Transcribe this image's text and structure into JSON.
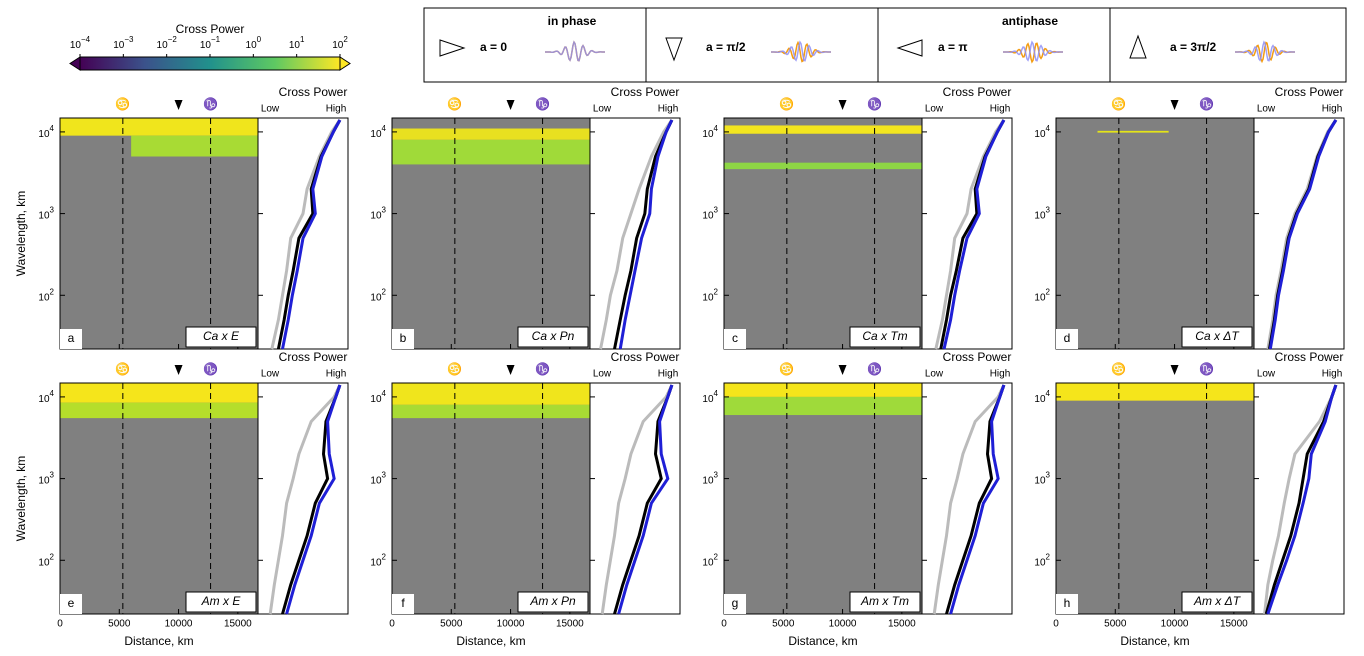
{
  "colorbar": {
    "title": "Cross Power",
    "lim": [
      0.0001,
      100
    ],
    "ticks": [
      {
        "value": 0.0001,
        "label": "10",
        "exponent": "−4"
      },
      {
        "value": 0.001,
        "label": "10",
        "exponent": "−3"
      },
      {
        "value": 0.01,
        "label": "10",
        "exponent": "−2"
      },
      {
        "value": 0.1,
        "label": "10",
        "exponent": "−1"
      },
      {
        "value": 1,
        "label": "10",
        "exponent": "0"
      },
      {
        "value": 10,
        "label": "10",
        "exponent": "1"
      },
      {
        "value": 100,
        "label": "10",
        "exponent": "2"
      }
    ]
  },
  "legend": [
    {
      "label": "a = 0",
      "note": "in phase"
    },
    {
      "label": "a = π/2"
    },
    {
      "label": "a = π",
      "note": "antiphase"
    },
    {
      "label": "a = 3π/2"
    }
  ],
  "axes": {
    "xlabel": "Distance, km",
    "ylabel": "Wavelength, km",
    "xlim": [
      0,
      16700
    ],
    "xticks": [
      0,
      5000,
      10000,
      15000
    ],
    "ylim": [
      22,
      14800
    ],
    "yticks": [
      {
        "value": 100,
        "label": "10",
        "exponent": "2"
      },
      {
        "value": 1000,
        "label": "10",
        "exponent": "3"
      },
      {
        "value": 10000,
        "label": "10",
        "exponent": "4"
      }
    ],
    "side_title": "Cross Power",
    "low": "Low",
    "high": "High",
    "tropics": [
      {
        "label": "♋",
        "distance": 5300
      },
      {
        "label": "♑",
        "distance": 12700
      }
    ],
    "equator": 10000,
    "wavelengths": [
      22,
      50,
      100,
      200,
      500,
      1000,
      2000,
      5000,
      10000,
      14000
    ]
  },
  "panels": [
    {
      "label": "a",
      "title": "Ca x E",
      "bands": [
        {
          "from": 9000,
          "to": 14800,
          "distance": [
            0,
            16700
          ],
          "color": "#f0e51c"
        },
        {
          "from": 5000,
          "to": 9000,
          "distance": [
            6000,
            16700
          ],
          "color": "#a8db34"
        }
      ],
      "curves": [
        {
          "color": "#bbbbbb",
          "values": [
            0.12,
            0.2,
            0.25,
            0.3,
            0.35,
            0.5,
            0.55,
            0.7,
            0.85,
            0.95
          ]
        },
        {
          "color": "#000000",
          "values": [
            0.2,
            0.27,
            0.32,
            0.38,
            0.45,
            0.62,
            0.6,
            0.72,
            0.87,
            0.95
          ]
        },
        {
          "color": "#1f1fd6",
          "values": [
            0.25,
            0.32,
            0.37,
            0.43,
            0.5,
            0.65,
            0.62,
            0.73,
            0.87,
            0.95
          ]
        }
      ]
    },
    {
      "label": "b",
      "title": "Ca x Pn",
      "bands": [
        {
          "from": 8000,
          "to": 11000,
          "distance": [
            0,
            16700
          ],
          "color": "#e8e020"
        },
        {
          "from": 4000,
          "to": 8000,
          "distance": [
            0,
            16700
          ],
          "color": "#a0da39"
        }
      ],
      "curves": [
        {
          "color": "#bbbbbb",
          "values": [
            0.08,
            0.15,
            0.2,
            0.28,
            0.35,
            0.45,
            0.55,
            0.7,
            0.85,
            0.95
          ]
        },
        {
          "color": "#000000",
          "values": [
            0.25,
            0.32,
            0.38,
            0.45,
            0.52,
            0.62,
            0.65,
            0.75,
            0.88,
            0.95
          ]
        },
        {
          "color": "#1f1fd6",
          "values": [
            0.32,
            0.38,
            0.44,
            0.5,
            0.58,
            0.68,
            0.7,
            0.78,
            0.88,
            0.95
          ]
        }
      ]
    },
    {
      "label": "c",
      "title": "Ca x Tm",
      "bands": [
        {
          "from": 9500,
          "to": 12000,
          "distance": [
            0,
            16700
          ],
          "color": "#f3e51e"
        },
        {
          "from": 3500,
          "to": 4200,
          "distance": [
            0,
            16700
          ],
          "color": "#8ed645"
        }
      ],
      "curves": [
        {
          "color": "#bbbbbb",
          "values": [
            0.12,
            0.2,
            0.25,
            0.3,
            0.35,
            0.5,
            0.55,
            0.7,
            0.85,
            0.95
          ]
        },
        {
          "color": "#000000",
          "values": [
            0.18,
            0.25,
            0.3,
            0.37,
            0.45,
            0.62,
            0.6,
            0.72,
            0.87,
            0.95
          ]
        },
        {
          "color": "#1f1fd6",
          "values": [
            0.22,
            0.3,
            0.35,
            0.41,
            0.5,
            0.65,
            0.62,
            0.73,
            0.87,
            0.95
          ]
        }
      ]
    },
    {
      "label": "d",
      "title": "Ca x ΔT",
      "bands": [
        {
          "from": 9800,
          "to": 10300,
          "distance": [
            3500,
            9500
          ],
          "color": "#e4e418"
        }
      ],
      "curves": [
        {
          "color": "#bbbbbb",
          "values": [
            0.12,
            0.18,
            0.22,
            0.28,
            0.35,
            0.45,
            0.6,
            0.72,
            0.85,
            0.95
          ]
        },
        {
          "color": "#000000",
          "values": [
            0.14,
            0.2,
            0.24,
            0.3,
            0.37,
            0.47,
            0.62,
            0.73,
            0.86,
            0.95
          ]
        },
        {
          "color": "#1f1fd6",
          "values": [
            0.15,
            0.21,
            0.25,
            0.31,
            0.38,
            0.48,
            0.63,
            0.74,
            0.86,
            0.95
          ]
        }
      ]
    },
    {
      "label": "e",
      "title": "Am x E",
      "bands": [
        {
          "from": 8500,
          "to": 14800,
          "distance": [
            0,
            16700
          ],
          "color": "#f5e51b"
        },
        {
          "from": 5500,
          "to": 8500,
          "distance": [
            0,
            16700
          ],
          "color": "#b5de2b"
        }
      ],
      "curves": [
        {
          "color": "#bbbbbb",
          "values": [
            0.1,
            0.15,
            0.2,
            0.25,
            0.3,
            0.38,
            0.45,
            0.6,
            0.88,
            0.95
          ]
        },
        {
          "color": "#000000",
          "values": [
            0.25,
            0.35,
            0.45,
            0.55,
            0.65,
            0.8,
            0.75,
            0.78,
            0.9,
            0.95
          ]
        },
        {
          "color": "#1f1fd6",
          "values": [
            0.3,
            0.4,
            0.5,
            0.6,
            0.7,
            0.88,
            0.82,
            0.8,
            0.9,
            0.95
          ]
        }
      ]
    },
    {
      "label": "f",
      "title": "Am x Pn",
      "bands": [
        {
          "from": 8000,
          "to": 14800,
          "distance": [
            0,
            16700
          ],
          "color": "#f0e51c"
        },
        {
          "from": 5500,
          "to": 8000,
          "distance": [
            0,
            16700
          ],
          "color": "#a8db34"
        }
      ],
      "curves": [
        {
          "color": "#bbbbbb",
          "values": [
            0.1,
            0.15,
            0.2,
            0.25,
            0.3,
            0.38,
            0.45,
            0.6,
            0.88,
            0.95
          ]
        },
        {
          "color": "#000000",
          "values": [
            0.25,
            0.35,
            0.45,
            0.55,
            0.65,
            0.82,
            0.75,
            0.78,
            0.9,
            0.95
          ]
        },
        {
          "color": "#1f1fd6",
          "values": [
            0.3,
            0.4,
            0.5,
            0.6,
            0.7,
            0.9,
            0.82,
            0.8,
            0.9,
            0.95
          ]
        }
      ]
    },
    {
      "label": "g",
      "title": "Am x Tm",
      "bands": [
        {
          "from": 10000,
          "to": 14800,
          "distance": [
            0,
            16700
          ],
          "color": "#f5e51b"
        },
        {
          "from": 6000,
          "to": 10000,
          "distance": [
            0,
            16700
          ],
          "color": "#9fda3a"
        }
      ],
      "curves": [
        {
          "color": "#bbbbbb",
          "values": [
            0.1,
            0.15,
            0.2,
            0.25,
            0.3,
            0.38,
            0.45,
            0.6,
            0.88,
            0.95
          ]
        },
        {
          "color": "#000000",
          "values": [
            0.25,
            0.35,
            0.45,
            0.55,
            0.65,
            0.8,
            0.75,
            0.78,
            0.9,
            0.95
          ]
        },
        {
          "color": "#1f1fd6",
          "values": [
            0.3,
            0.4,
            0.5,
            0.6,
            0.7,
            0.88,
            0.82,
            0.8,
            0.9,
            0.95
          ]
        }
      ]
    },
    {
      "label": "h",
      "title": "Am x ΔT",
      "bands": [
        {
          "from": 9000,
          "to": 14800,
          "distance": [
            0,
            16700
          ],
          "color": "#f5e51b"
        }
      ],
      "curves": [
        {
          "color": "#bbbbbb",
          "values": [
            0.08,
            0.12,
            0.18,
            0.25,
            0.32,
            0.38,
            0.45,
            0.75,
            0.9,
            0.95
          ]
        },
        {
          "color": "#000000",
          "values": [
            0.1,
            0.2,
            0.3,
            0.4,
            0.5,
            0.55,
            0.6,
            0.8,
            0.9,
            0.95
          ]
        },
        {
          "color": "#1f1fd6",
          "values": [
            0.12,
            0.24,
            0.35,
            0.45,
            0.55,
            0.62,
            0.65,
            0.82,
            0.9,
            0.95
          ]
        }
      ]
    }
  ]
}
